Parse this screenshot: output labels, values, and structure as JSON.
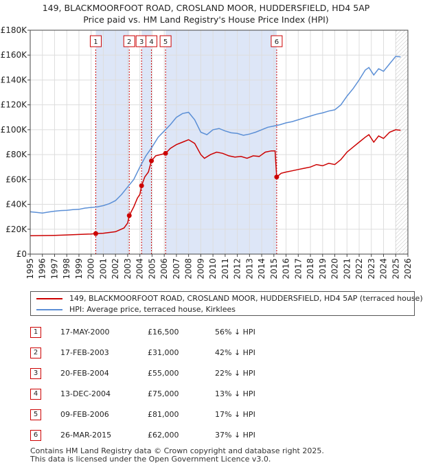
{
  "title_line1": "149, BLACKMOORFOOT ROAD, CROSLAND MOOR, HUDDERSFIELD, HD4 5AP",
  "title_line2": "Price paid vs. HM Land Registry's House Price Index (HPI)",
  "colors": {
    "property": "#cc0000",
    "hpi": "#5b8fd6",
    "shade": "#dde6f7",
    "grid": "#dddddd"
  },
  "chart_data": {
    "type": "line",
    "title": "149, BLACKMOORFOOT ROAD, CROSLAND MOOR, HUDDERSFIELD, HD4 5AP — Price paid vs. HM Land Registry's House Price Index (HPI)",
    "xlabel": "",
    "ylabel": "",
    "xlim": [
      1995,
      2026
    ],
    "ylim": [
      0,
      180000
    ],
    "x_ticks": [
      1995,
      1996,
      1997,
      1998,
      1999,
      2000,
      2001,
      2002,
      2003,
      2004,
      2005,
      2006,
      2007,
      2008,
      2009,
      2010,
      2011,
      2012,
      2013,
      2014,
      2015,
      2016,
      2017,
      2018,
      2019,
      2020,
      2021,
      2022,
      2023,
      2024,
      2025,
      2026
    ],
    "y_ticks": [
      {
        "value": 0,
        "label": "£0"
      },
      {
        "value": 20000,
        "label": "£20K"
      },
      {
        "value": 40000,
        "label": "£40K"
      },
      {
        "value": 60000,
        "label": "£60K"
      },
      {
        "value": 80000,
        "label": "£80K"
      },
      {
        "value": 100000,
        "label": "£100K"
      },
      {
        "value": 120000,
        "label": "£120K"
      },
      {
        "value": 140000,
        "label": "£140K"
      },
      {
        "value": 160000,
        "label": "£160K"
      },
      {
        "value": 180000,
        "label": "£180K"
      }
    ],
    "series": [
      {
        "name": "149, BLACKMOORFOOT ROAD, CROSLAND MOOR, HUDDERSFIELD, HD4 5AP (terraced house)",
        "points": [
          [
            1995.0,
            14800
          ],
          [
            1996.0,
            14900
          ],
          [
            1997.0,
            15100
          ],
          [
            1998.0,
            15400
          ],
          [
            1999.0,
            15800
          ],
          [
            2000.0,
            16200
          ],
          [
            2000.38,
            16500
          ],
          [
            2001.0,
            16800
          ],
          [
            2002.0,
            18000
          ],
          [
            2002.7,
            21000
          ],
          [
            2003.0,
            25000
          ],
          [
            2003.13,
            31000
          ],
          [
            2003.5,
            38000
          ],
          [
            2003.8,
            45000
          ],
          [
            2004.0,
            48000
          ],
          [
            2004.14,
            55000
          ],
          [
            2004.4,
            62000
          ],
          [
            2004.7,
            66000
          ],
          [
            2004.95,
            75000
          ],
          [
            2005.3,
            79000
          ],
          [
            2005.7,
            80000
          ],
          [
            2006.11,
            81000
          ],
          [
            2006.5,
            85000
          ],
          [
            2007.0,
            88000
          ],
          [
            2007.5,
            90000
          ],
          [
            2008.0,
            92000
          ],
          [
            2008.5,
            89000
          ],
          [
            2009.0,
            80000
          ],
          [
            2009.3,
            77000
          ],
          [
            2009.8,
            80000
          ],
          [
            2010.3,
            82000
          ],
          [
            2010.8,
            81000
          ],
          [
            2011.3,
            79000
          ],
          [
            2011.8,
            78000
          ],
          [
            2012.3,
            78500
          ],
          [
            2012.8,
            77000
          ],
          [
            2013.3,
            79000
          ],
          [
            2013.8,
            78500
          ],
          [
            2014.3,
            82000
          ],
          [
            2014.8,
            83000
          ],
          [
            2015.1,
            83000
          ],
          [
            2015.23,
            62000
          ],
          [
            2015.6,
            65000
          ],
          [
            2016.0,
            66000
          ],
          [
            2016.5,
            67000
          ],
          [
            2017.0,
            68000
          ],
          [
            2017.5,
            69000
          ],
          [
            2018.0,
            70000
          ],
          [
            2018.5,
            72000
          ],
          [
            2019.0,
            71000
          ],
          [
            2019.5,
            73000
          ],
          [
            2020.0,
            72000
          ],
          [
            2020.5,
            76000
          ],
          [
            2021.0,
            82000
          ],
          [
            2021.5,
            86000
          ],
          [
            2022.0,
            90000
          ],
          [
            2022.5,
            94000
          ],
          [
            2022.8,
            96000
          ],
          [
            2023.2,
            90000
          ],
          [
            2023.6,
            95000
          ],
          [
            2024.0,
            93000
          ],
          [
            2024.5,
            98000
          ],
          [
            2025.0,
            100000
          ],
          [
            2025.4,
            99500
          ]
        ]
      },
      {
        "name": "HPI: Average price, terraced house, Kirklees",
        "points": [
          [
            1995.0,
            34000
          ],
          [
            1995.5,
            33500
          ],
          [
            1996.0,
            33000
          ],
          [
            1996.5,
            33800
          ],
          [
            1997.0,
            34500
          ],
          [
            1997.5,
            35000
          ],
          [
            1998.0,
            35200
          ],
          [
            1998.5,
            35700
          ],
          [
            1999.0,
            36000
          ],
          [
            1999.5,
            37000
          ],
          [
            2000.0,
            37500
          ],
          [
            2000.5,
            38000
          ],
          [
            2001.0,
            39000
          ],
          [
            2001.5,
            40500
          ],
          [
            2002.0,
            43000
          ],
          [
            2002.5,
            48000
          ],
          [
            2003.0,
            54000
          ],
          [
            2003.5,
            60000
          ],
          [
            2004.0,
            70000
          ],
          [
            2004.5,
            79000
          ],
          [
            2005.0,
            86000
          ],
          [
            2005.5,
            94000
          ],
          [
            2006.0,
            99000
          ],
          [
            2006.5,
            104000
          ],
          [
            2007.0,
            110000
          ],
          [
            2007.5,
            113000
          ],
          [
            2008.0,
            114000
          ],
          [
            2008.5,
            108000
          ],
          [
            2009.0,
            98000
          ],
          [
            2009.5,
            96000
          ],
          [
            2010.0,
            100000
          ],
          [
            2010.5,
            101000
          ],
          [
            2011.0,
            99000
          ],
          [
            2011.5,
            97500
          ],
          [
            2012.0,
            97000
          ],
          [
            2012.5,
            95500
          ],
          [
            2013.0,
            96500
          ],
          [
            2013.5,
            98000
          ],
          [
            2014.0,
            100000
          ],
          [
            2014.5,
            102000
          ],
          [
            2015.0,
            103000
          ],
          [
            2015.5,
            104000
          ],
          [
            2016.0,
            105500
          ],
          [
            2016.5,
            106500
          ],
          [
            2017.0,
            108000
          ],
          [
            2017.5,
            109500
          ],
          [
            2018.0,
            111000
          ],
          [
            2018.5,
            112500
          ],
          [
            2019.0,
            113500
          ],
          [
            2019.5,
            115000
          ],
          [
            2020.0,
            116000
          ],
          [
            2020.5,
            120000
          ],
          [
            2021.0,
            127000
          ],
          [
            2021.5,
            133000
          ],
          [
            2022.0,
            140000
          ],
          [
            2022.5,
            148000
          ],
          [
            2022.8,
            150000
          ],
          [
            2023.2,
            144000
          ],
          [
            2023.6,
            149000
          ],
          [
            2024.0,
            147000
          ],
          [
            2024.5,
            153000
          ],
          [
            2025.0,
            159000
          ],
          [
            2025.4,
            158500
          ]
        ]
      }
    ],
    "sales": [
      {
        "marker": "1",
        "date": "17-MAY-2000",
        "price": "£16,500",
        "hpi_diff": "56% ↓ HPI",
        "x": 2000.38,
        "y": 16500
      },
      {
        "marker": "2",
        "date": "17-FEB-2003",
        "price": "£31,000",
        "hpi_diff": "42% ↓ HPI",
        "x": 2003.13,
        "y": 31000
      },
      {
        "marker": "3",
        "date": "20-FEB-2004",
        "price": "£55,000",
        "hpi_diff": "22% ↓ HPI",
        "x": 2004.14,
        "y": 55000
      },
      {
        "marker": "4",
        "date": "13-DEC-2004",
        "price": "£75,000",
        "hpi_diff": "13% ↓ HPI",
        "x": 2004.95,
        "y": 75000
      },
      {
        "marker": "5",
        "date": "09-FEB-2006",
        "price": "£81,000",
        "hpi_diff": "17% ↓ HPI",
        "x": 2006.11,
        "y": 81000
      },
      {
        "marker": "6",
        "date": "26-MAR-2015",
        "price": "£62,000",
        "hpi_diff": "37% ↓ HPI",
        "x": 2015.23,
        "y": 62000
      }
    ],
    "shaded_ranges": [
      [
        2000.38,
        2003.13
      ],
      [
        2004.14,
        2004.95
      ],
      [
        2006.11,
        2015.23
      ]
    ],
    "future_hatch_start": 2025.0
  },
  "legend": {
    "property_label": "149, BLACKMOORFOOT ROAD, CROSLAND MOOR, HUDDERSFIELD, HD4 5AP (terraced house)",
    "hpi_label": "HPI: Average price, terraced house, Kirklees"
  },
  "footer": {
    "line1": "Contains HM Land Registry data © Crown copyright and database right 2025.",
    "line2": "This data is licensed under the Open Government Licence v3.0."
  }
}
